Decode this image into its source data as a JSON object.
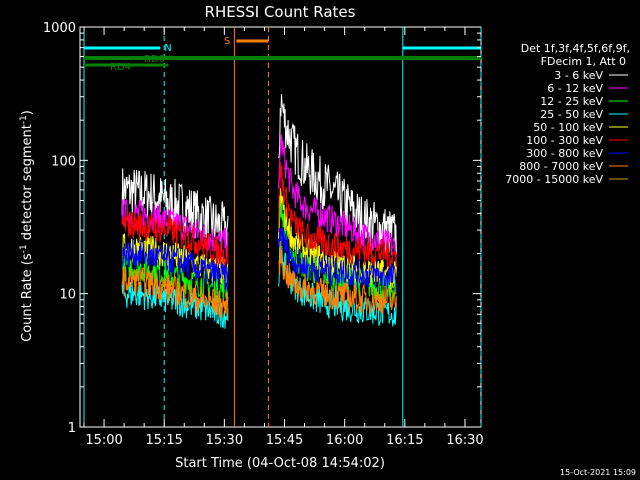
{
  "chart_data": {
    "type": "line",
    "title": "RHESSI Count Rates",
    "xlabel": "Start Time (04-Oct-08 14:54:02)",
    "ylabel": "Count Rate (s⁻¹ detector segment⁻¹)",
    "ylabel_main": "Count Rate (s",
    "ylabel_sup1": "-1",
    "ylabel_mid": " detector segment",
    "ylabel_sup2": "-1",
    "ylabel_end": ")",
    "yscale": "log",
    "x_range_min": [
      894,
      994
    ],
    "ylim": [
      1,
      1000
    ],
    "x_ticks": [
      {
        "min": 900,
        "label": "15:00"
      },
      {
        "min": 915,
        "label": "15:15"
      },
      {
        "min": 930,
        "label": "15:30"
      },
      {
        "min": 945,
        "label": "15:45"
      },
      {
        "min": 960,
        "label": "16:00"
      },
      {
        "min": 975,
        "label": "16:15"
      },
      {
        "min": 990,
        "label": "16:30"
      }
    ],
    "y_ticks": [
      {
        "value": 1,
        "label": "1"
      },
      {
        "value": 10,
        "label": "10"
      },
      {
        "value": 100,
        "label": "100"
      },
      {
        "value": 1000,
        "label": "1000"
      }
    ],
    "legend": {
      "header1": "Det 1f,3f,4f,5f,6f,9f,",
      "header2": "FDecim 1, Att 0",
      "placement": "right"
    },
    "series": [
      {
        "name": "3 - 6 keV",
        "color": "#ffffff",
        "seg1": [
          [
            904.5,
            60
          ],
          [
            908,
            58
          ],
          [
            912,
            55
          ],
          [
            916,
            48
          ],
          [
            920,
            45
          ],
          [
            924,
            38
          ],
          [
            928,
            33
          ],
          [
            931,
            30
          ]
        ],
        "seg2": [
          [
            943.5,
            70
          ],
          [
            944,
            300
          ],
          [
            945,
            200
          ],
          [
            947,
            130
          ],
          [
            950,
            90
          ],
          [
            955,
            65
          ],
          [
            960,
            48
          ],
          [
            965,
            35
          ],
          [
            970,
            30
          ],
          [
            973,
            27
          ]
        ]
      },
      {
        "name": "6 - 12 keV",
        "color": "#ff00ff",
        "seg1": [
          [
            904.5,
            40
          ],
          [
            908,
            40
          ],
          [
            912,
            38
          ],
          [
            916,
            35
          ],
          [
            920,
            32
          ],
          [
            924,
            28
          ],
          [
            928,
            25
          ],
          [
            931,
            24
          ]
        ],
        "seg2": [
          [
            943.5,
            50
          ],
          [
            944,
            150
          ],
          [
            945,
            100
          ],
          [
            947,
            60
          ],
          [
            950,
            45
          ],
          [
            955,
            38
          ],
          [
            960,
            32
          ],
          [
            965,
            27
          ],
          [
            970,
            24
          ],
          [
            973,
            22
          ]
        ]
      },
      {
        "name": "12 - 25 keV",
        "color": "#00ff00",
        "seg1": [
          [
            904.5,
            16
          ],
          [
            908,
            16
          ],
          [
            912,
            15
          ],
          [
            916,
            14
          ],
          [
            920,
            13
          ],
          [
            924,
            12
          ],
          [
            928,
            11
          ],
          [
            931,
            10.5
          ]
        ],
        "seg2": [
          [
            943.5,
            22
          ],
          [
            944,
            50
          ],
          [
            945,
            30
          ],
          [
            947,
            20
          ],
          [
            950,
            16
          ],
          [
            955,
            14
          ],
          [
            960,
            13
          ],
          [
            965,
            12
          ],
          [
            970,
            11
          ],
          [
            973,
            10.5
          ]
        ]
      },
      {
        "name": "25 - 50 keV",
        "color": "#00ffff",
        "seg1": [
          [
            904.5,
            10
          ],
          [
            908,
            10
          ],
          [
            912,
            9.5
          ],
          [
            916,
            9
          ],
          [
            920,
            8.5
          ],
          [
            924,
            7.8
          ],
          [
            928,
            7.2
          ],
          [
            931,
            7
          ]
        ],
        "seg2": [
          [
            943.5,
            13
          ],
          [
            944,
            25
          ],
          [
            945,
            16
          ],
          [
            947,
            12
          ],
          [
            950,
            10
          ],
          [
            955,
            8.5
          ],
          [
            960,
            8
          ],
          [
            965,
            7.5
          ],
          [
            970,
            7.2
          ],
          [
            973,
            7
          ]
        ]
      },
      {
        "name": "50 - 100 keV",
        "color": "#ffff00",
        "seg1": [
          [
            904.5,
            22
          ],
          [
            908,
            22
          ],
          [
            912,
            21
          ],
          [
            916,
            20
          ],
          [
            920,
            18
          ],
          [
            924,
            16
          ],
          [
            928,
            15
          ],
          [
            931,
            14.5
          ]
        ],
        "seg2": [
          [
            943.5,
            28
          ],
          [
            944,
            60
          ],
          [
            945,
            38
          ],
          [
            947,
            26
          ],
          [
            950,
            21
          ],
          [
            955,
            18
          ],
          [
            960,
            16
          ],
          [
            965,
            15
          ],
          [
            970,
            14
          ],
          [
            973,
            13.5
          ]
        ]
      },
      {
        "name": "100 - 300 keV",
        "color": "#ff0000",
        "seg1": [
          [
            904.5,
            33
          ],
          [
            908,
            33
          ],
          [
            912,
            31
          ],
          [
            916,
            30
          ],
          [
            920,
            27
          ],
          [
            924,
            24
          ],
          [
            928,
            21
          ],
          [
            931,
            19
          ]
        ],
        "seg2": [
          [
            943.5,
            35
          ],
          [
            944,
            90
          ],
          [
            945,
            55
          ],
          [
            947,
            35
          ],
          [
            950,
            27
          ],
          [
            955,
            24
          ],
          [
            960,
            22
          ],
          [
            965,
            21
          ],
          [
            970,
            20
          ],
          [
            973,
            19
          ]
        ]
      },
      {
        "name": "300 - 800 keV",
        "color": "#0000ff",
        "seg1": [
          [
            904.5,
            20
          ],
          [
            908,
            20
          ],
          [
            912,
            19
          ],
          [
            916,
            18
          ],
          [
            920,
            17
          ],
          [
            924,
            15
          ],
          [
            928,
            14
          ],
          [
            931,
            13
          ]
        ],
        "seg2": [
          [
            943.5,
            22
          ],
          [
            944,
            30
          ],
          [
            945,
            24
          ],
          [
            947,
            18
          ],
          [
            950,
            16
          ],
          [
            955,
            15
          ],
          [
            960,
            14.5
          ],
          [
            965,
            14
          ],
          [
            970,
            13.5
          ],
          [
            973,
            13
          ]
        ]
      },
      {
        "name": "800 - 7000 keV",
        "color": "#ff8000",
        "seg1": [
          [
            904.5,
            12.5
          ],
          [
            908,
            12.5
          ],
          [
            912,
            12
          ],
          [
            916,
            11
          ],
          [
            920,
            10
          ],
          [
            924,
            9
          ],
          [
            928,
            8.5
          ],
          [
            931,
            8
          ]
        ],
        "seg2": [
          [
            943.5,
            15
          ],
          [
            944,
            20
          ],
          [
            945,
            15
          ],
          [
            947,
            12
          ],
          [
            950,
            11
          ],
          [
            955,
            10
          ],
          [
            960,
            9.5
          ],
          [
            965,
            9
          ],
          [
            970,
            9
          ],
          [
            973,
            8.5
          ]
        ]
      },
      {
        "name": "7000 - 15000 keV",
        "color": "#c0a000",
        "seg1": [],
        "seg2": []
      }
    ],
    "annotations": {
      "cyan_solid_lines_min": [
        895,
        974.5
      ],
      "cyan_dashed_lines_min": [
        915,
        994
      ],
      "orange_solid_line_min": 932.5,
      "orange_dashed_line_min": 941,
      "cyan_bars": [
        {
          "from": 895,
          "to": 914
        },
        {
          "from": 974.5,
          "to": 994
        }
      ],
      "n_label": "N",
      "green_bar_rd0": {
        "from": 895,
        "to": 994,
        "label": "RD0"
      },
      "green_bar_rd4": {
        "from": 895,
        "to": 916,
        "label": "RD4"
      },
      "orange_bar_s": {
        "from": 933,
        "to": 941,
        "label": "S"
      }
    }
  },
  "footer_date": "15-Oct-2021 15:09"
}
